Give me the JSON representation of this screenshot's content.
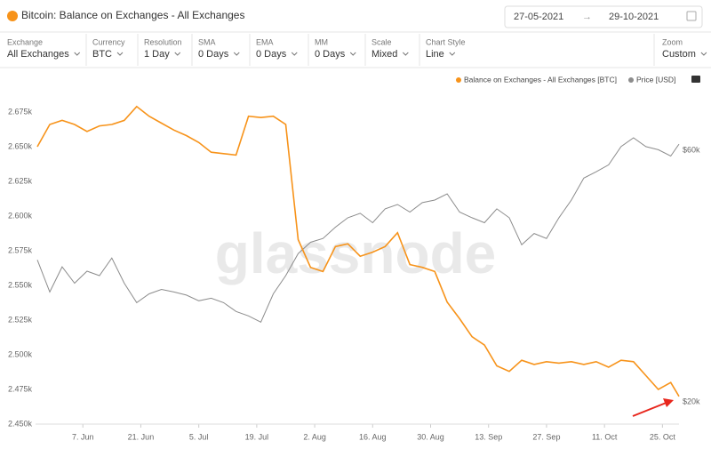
{
  "header": {
    "date_from": "27-05-2021",
    "date_to": "29-10-2021"
  },
  "controls": [
    {
      "label": "Exchange",
      "value": "All Exchanges"
    },
    {
      "label": "Currency",
      "value": "BTC"
    },
    {
      "label": "Resolution",
      "value": "1 Day"
    },
    {
      "label": "SMA",
      "value": "0 Days"
    },
    {
      "label": "EMA",
      "value": "0 Days"
    },
    {
      "label": "MM",
      "value": "0 Days"
    },
    {
      "label": "Scale",
      "value": "Mixed"
    },
    {
      "label": "Chart Style",
      "value": "Line"
    },
    {
      "label": "Zoom",
      "value": "Custom"
    }
  ],
  "chart_data": {
    "type": "line",
    "title": "Bitcoin: Balance on Exchanges - All Exchanges",
    "watermark": "glassnode",
    "x": [
      "2021-05-27",
      "2021-05-30",
      "2021-06-02",
      "2021-06-05",
      "2021-06-08",
      "2021-06-11",
      "2021-06-14",
      "2021-06-17",
      "2021-06-20",
      "2021-06-23",
      "2021-06-26",
      "2021-06-29",
      "2021-07-02",
      "2021-07-05",
      "2021-07-08",
      "2021-07-11",
      "2021-07-14",
      "2021-07-17",
      "2021-07-20",
      "2021-07-23",
      "2021-07-26",
      "2021-07-29",
      "2021-08-01",
      "2021-08-04",
      "2021-08-07",
      "2021-08-10",
      "2021-08-13",
      "2021-08-16",
      "2021-08-19",
      "2021-08-22",
      "2021-08-25",
      "2021-08-28",
      "2021-08-31",
      "2021-09-03",
      "2021-09-06",
      "2021-09-09",
      "2021-09-12",
      "2021-09-15",
      "2021-09-18",
      "2021-09-21",
      "2021-09-24",
      "2021-09-27",
      "2021-09-30",
      "2021-10-03",
      "2021-10-06",
      "2021-10-09",
      "2021-10-12",
      "2021-10-15",
      "2021-10-18",
      "2021-10-21",
      "2021-10-24",
      "2021-10-27",
      "2021-10-29"
    ],
    "xlim": [
      "2021-05-27",
      "2021-10-29"
    ],
    "xticks": [
      {
        "value": "2021-06-07",
        "label": "7. Jun"
      },
      {
        "value": "2021-06-21",
        "label": "21. Jun"
      },
      {
        "value": "2021-07-05",
        "label": "5. Jul"
      },
      {
        "value": "2021-07-19",
        "label": "19. Jul"
      },
      {
        "value": "2021-08-02",
        "label": "2. Aug"
      },
      {
        "value": "2021-08-16",
        "label": "16. Aug"
      },
      {
        "value": "2021-08-30",
        "label": "30. Aug"
      },
      {
        "value": "2021-09-13",
        "label": "13. Sep"
      },
      {
        "value": "2021-09-27",
        "label": "27. Sep"
      },
      {
        "value": "2021-10-11",
        "label": "11. Oct"
      },
      {
        "value": "2021-10-25",
        "label": "25. Oct"
      }
    ],
    "ylim": [
      2450,
      2690
    ],
    "yticks": [
      {
        "value": 2450,
        "label": "2.450k"
      },
      {
        "value": 2475,
        "label": "2.475k"
      },
      {
        "value": 2500,
        "label": "2.500k"
      },
      {
        "value": 2525,
        "label": "2.525k"
      },
      {
        "value": 2550,
        "label": "2.550k"
      },
      {
        "value": 2575,
        "label": "2.575k"
      },
      {
        "value": 2600,
        "label": "2.600k"
      },
      {
        "value": 2625,
        "label": "2.625k"
      },
      {
        "value": 2650,
        "label": "2.650k"
      },
      {
        "value": 2675,
        "label": "2.675k"
      }
    ],
    "y2lim": [
      16500,
      69400
    ],
    "y2ticks": [
      {
        "value": 20000,
        "label": "$20k"
      },
      {
        "value": 60000,
        "label": "$60k"
      }
    ],
    "grid": false,
    "series": [
      {
        "name": "Balance on Exchanges - All Exchanges [BTC]",
        "color": "#f7931a",
        "values": [
          2650,
          2666,
          2669,
          2666,
          2661,
          2665,
          2666,
          2669,
          2679,
          2672,
          2667,
          2662,
          2658,
          2653,
          2646,
          2645,
          2644,
          2672,
          2671,
          2672,
          2666,
          2583,
          2563,
          2560,
          2578,
          2580,
          2571,
          2574,
          2578,
          2588,
          2565,
          2563,
          2560,
          2538,
          2526,
          2513,
          2507,
          2492,
          2488,
          2496,
          2493,
          2495,
          2494,
          2495,
          2493,
          2495,
          2491,
          2496,
          2495,
          2485,
          2475,
          2480,
          2470
        ]
      },
      {
        "name": "Price [USD]",
        "color": "#8c8c8c",
        "axis": "y2",
        "values": [
          42600,
          37500,
          41500,
          38900,
          40800,
          40100,
          42900,
          38900,
          35800,
          37200,
          37900,
          37500,
          37000,
          36100,
          36500,
          35800,
          34400,
          33700,
          32700,
          37200,
          40100,
          43600,
          45400,
          46000,
          47800,
          49300,
          50000,
          48500,
          50700,
          51400,
          50200,
          51700,
          52100,
          53100,
          50200,
          49300,
          48500,
          50700,
          49300,
          45000,
          46800,
          46000,
          49300,
          52100,
          55600,
          56600,
          57700,
          60600,
          62000,
          60600,
          60100,
          59100,
          61000
        ]
      }
    ]
  }
}
